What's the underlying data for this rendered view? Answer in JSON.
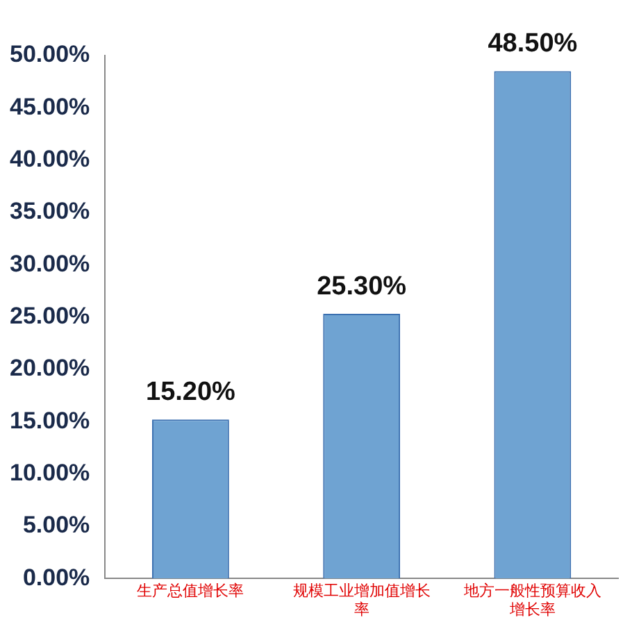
{
  "chart_data": {
    "type": "bar",
    "categories": [
      "生产总值增长率",
      "规模工业增加值增长率",
      "地方一般性预算收入增长率"
    ],
    "values": [
      15.2,
      25.3,
      48.5
    ],
    "value_labels": [
      "15.20%",
      "25.30%",
      "48.50%"
    ],
    "color": "#6fa3d2",
    "ylim": [
      0,
      50
    ],
    "yticks": [
      {
        "value": 0,
        "label": "0.00%"
      },
      {
        "value": 5,
        "label": "5.00%"
      },
      {
        "value": 10,
        "label": "10.00%"
      },
      {
        "value": 15,
        "label": "15.00%"
      },
      {
        "value": 20,
        "label": "20.00%"
      },
      {
        "value": 25,
        "label": "25.00%"
      },
      {
        "value": 30,
        "label": "30.00%"
      },
      {
        "value": 35,
        "label": "35.00%"
      },
      {
        "value": 40,
        "label": "40.00%"
      },
      {
        "value": 45,
        "label": "45.00%"
      },
      {
        "value": 50,
        "label": "50.00%"
      }
    ],
    "grid": false,
    "legend": false
  }
}
